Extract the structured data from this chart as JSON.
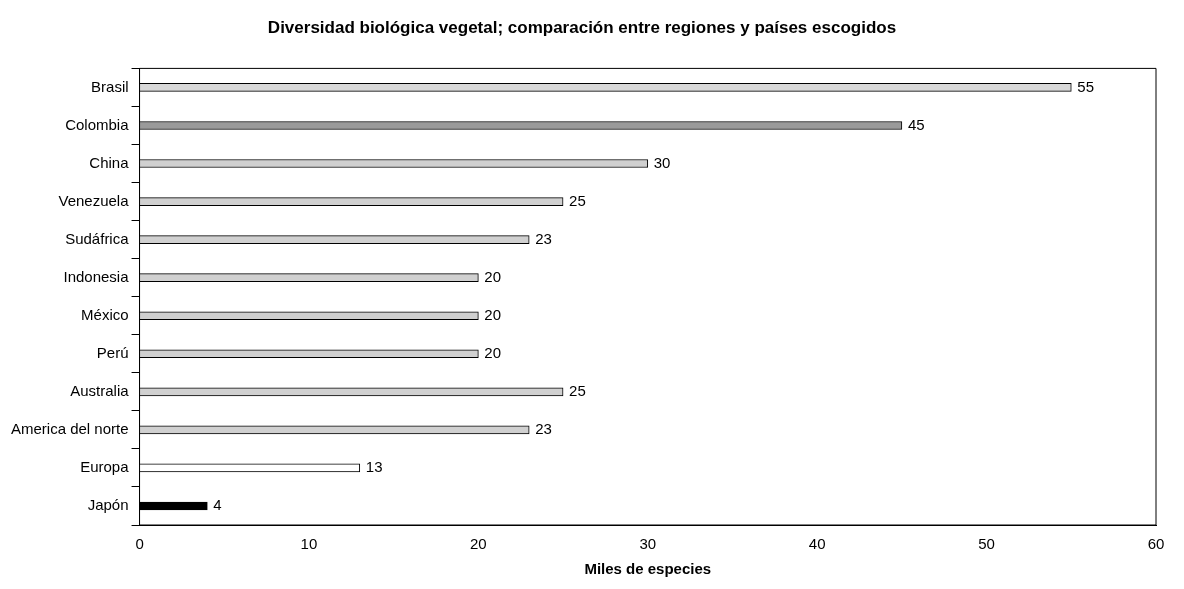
{
  "chart_data": {
    "type": "bar",
    "orientation": "horizontal",
    "title": "Diversidad biológica vegetal; comparación entre regiones y países escogidos",
    "xlabel": "Miles de especies",
    "categories": [
      "Brasil",
      "Colombia",
      "China",
      "Venezuela",
      "Sudáfrica",
      "Indonesia",
      "México",
      "Perú",
      "Australia",
      "America del norte",
      "Europa",
      "Japón"
    ],
    "values": [
      55,
      45,
      30,
      25,
      23,
      20,
      20,
      20,
      25,
      23,
      13,
      4
    ],
    "colors": [
      "#d8d8d8",
      "#9a9a9a",
      "#d0d0d0",
      "#d0d0d0",
      "#d0d0d0",
      "#d0d0d0",
      "#d0d0d0",
      "#d0d0d0",
      "#d0d0d0",
      "#d0d0d0",
      "#ffffff",
      "#000000"
    ],
    "xlim": [
      0,
      60
    ],
    "xticks": [
      0,
      10,
      20,
      30,
      40,
      50,
      60
    ],
    "data_labels": true,
    "grid": false,
    "legend": false
  }
}
